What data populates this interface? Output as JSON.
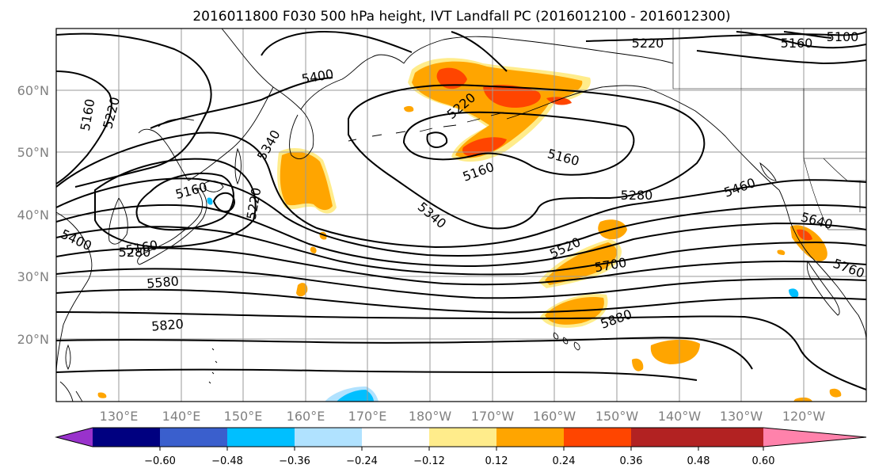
{
  "title": "2016011800 F030 500 hPa height, IVT Landfall PC (2016012100 - 2016012300)",
  "lat_labels": [
    "60°N",
    "50°N",
    "40°N",
    "30°N",
    "20°N"
  ],
  "lon_labels": [
    "130°E",
    "140°E",
    "150°E",
    "160°E",
    "170°E",
    "180°W",
    "170°W",
    "160°W",
    "150°W",
    "140°W",
    "130°W",
    "120°W"
  ],
  "contour_labels": [
    "5220",
    "5160",
    "5400",
    "5220",
    "5160",
    "5100",
    "5160",
    "5220",
    "5160",
    "5160",
    "5340",
    "5160",
    "5220",
    "5280",
    "5340",
    "5460",
    "5640",
    "5400",
    "5280",
    "5580",
    "5820",
    "5520",
    "5700",
    "5880",
    "5760"
  ],
  "colorbar": {
    "colors": [
      "#9932cc",
      "#000080",
      "#3a5fcd",
      "#00bfff",
      "#b0e2ff",
      "#ffffff",
      "#ffec8b",
      "#ffa500",
      "#ff4500",
      "#b22222",
      "#ff82ab"
    ],
    "tick_labels": [
      "−0.60",
      "−0.48",
      "−0.36",
      "−0.24",
      "−0.12",
      "0.12",
      "0.24",
      "0.36",
      "0.48",
      "0.60"
    ]
  },
  "fill_colors": {
    "light": "#ffec8b",
    "mid": "#ffa500",
    "high": "#ff4500",
    "cool": "#00bfff",
    "cool_light": "#b0e2ff"
  }
}
